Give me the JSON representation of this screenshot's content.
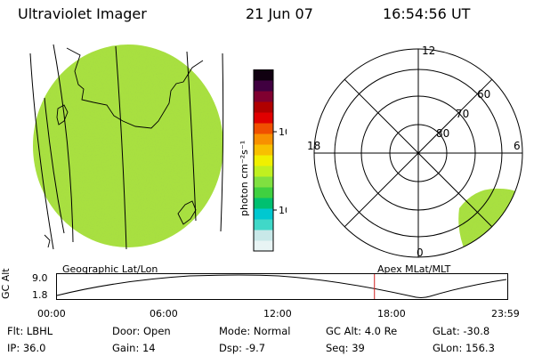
{
  "header": {
    "instrument": "Ultraviolet Imager",
    "date": "21 Jun 07",
    "time": "16:54:56 UT"
  },
  "globe_panel": {
    "label": "Geographic Lat/Lon"
  },
  "polar_panel": {
    "label": "Apex MLat/MLT",
    "mlt_labels": [
      "12",
      "18",
      "6",
      "0"
    ],
    "mlat_labels": [
      "60",
      "70",
      "80"
    ]
  },
  "colorbar": {
    "unit": "photon cm⁻²s⁻¹",
    "ticks": [
      "100",
      "10"
    ],
    "colors": [
      "#e8f4f4",
      "#c8e8e8",
      "#40d8c8",
      "#00c8d0",
      "#00c070",
      "#40d040",
      "#80e040",
      "#c0f020",
      "#f0f000",
      "#f8c000",
      "#f89000",
      "#f05000",
      "#e00000",
      "#b00000",
      "#800030",
      "#400040",
      "#100010"
    ]
  },
  "timeline": {
    "axis_label": "GC Alt",
    "y_labels": [
      "9.0",
      "1.8"
    ],
    "x_labels": [
      "00:00",
      "06:00",
      "12:00",
      "18:00",
      "23:59"
    ],
    "current_time_fraction": 0.705
  },
  "status": {
    "flt_label": "Flt:",
    "flt_value": "LBHL",
    "ip_label": "IP:",
    "ip_value": "36.0",
    "door_label": "Door:",
    "door_value": "Open",
    "gain_label": "Gain:",
    "gain_value": "14",
    "mode_label": "Mode:",
    "mode_value": "Normal",
    "dsp_label": "Dsp:",
    "dsp_value": "-9.7",
    "gcalt_label": "GC Alt:",
    "gcalt_value": "4.0 Re",
    "seq_label": "Seq:",
    "seq_value": "39",
    "glat_label": "GLat:",
    "glat_value": "-30.8",
    "glon_label": "GLon:",
    "glon_value": "156.3"
  },
  "colors": {
    "auroral_green": "#a8e040",
    "timeline_marker": "#d02020"
  }
}
